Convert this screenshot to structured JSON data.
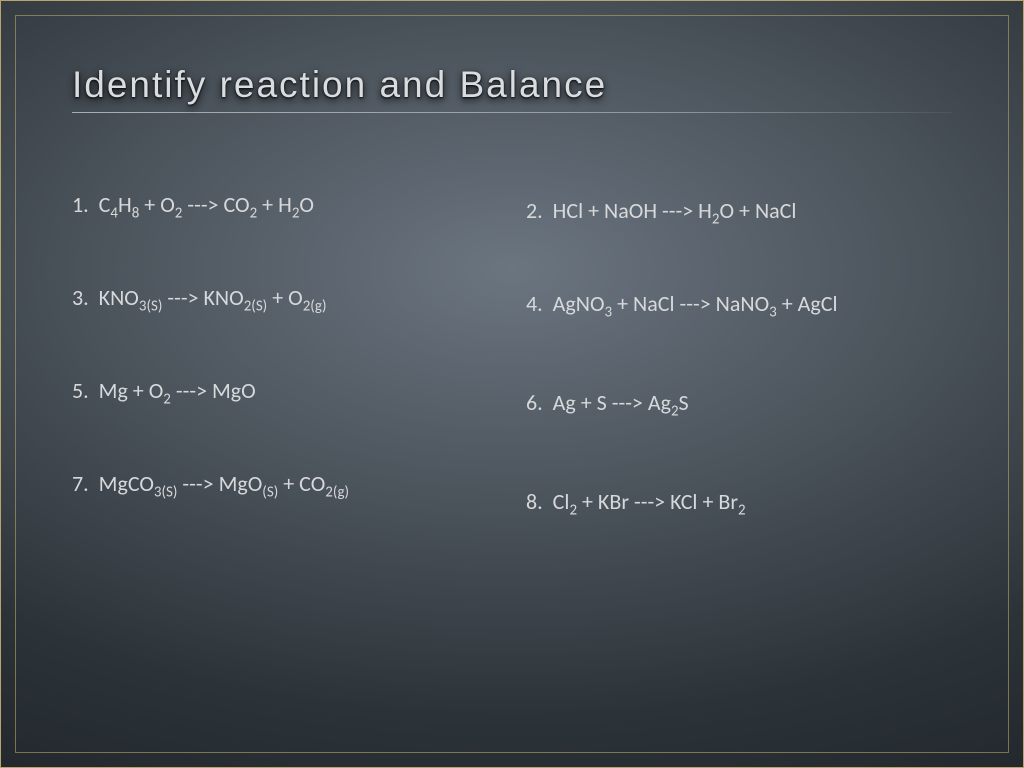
{
  "slide": {
    "title": "Identify reaction and Balance",
    "title_color": "#d9dde0",
    "title_fontsize": 37,
    "body_color": "#d6d8da",
    "body_fontsize": 22,
    "background_gradient": [
      "#6b7580",
      "#4a525a",
      "#2c3338",
      "#1a1f24"
    ],
    "frame_border_color": "#b8a56b",
    "equations": {
      "left": [
        {
          "num": "1.",
          "html": "C<sub>4</sub>H<sub>8</sub> + O<sub>2</sub> ---> CO<sub>2</sub> + H<sub>2</sub>O"
        },
        {
          "num": "3.",
          "html": "KNO<sub>3(S)</sub> ---> KNO<sub>2(S)</sub> + O<sub>2(g)</sub>"
        },
        {
          "num": "5.",
          "html": "Mg + O<sub>2</sub> ---> MgO"
        },
        {
          "num": "7.",
          "html": "MgCO<sub>3(S)</sub> ---> MgO<sub>(S)</sub> + CO<sub>2(g)</sub>"
        }
      ],
      "right": [
        {
          "num": "2.",
          "html": "HCl + NaOH ---> H<sub>2</sub>O + NaCl"
        },
        {
          "num": "4.",
          "html": "AgNO<sub>3</sub> + NaCl ---> NaNO<sub>3</sub> + AgCl"
        },
        {
          "num": "6.",
          "html": "Ag + S ---> Ag<sub>2</sub>S"
        },
        {
          "num": "8.",
          "html": "Cl<sub>2</sub> + KBr ---> KCl + Br<sub>2</sub>"
        }
      ]
    }
  }
}
